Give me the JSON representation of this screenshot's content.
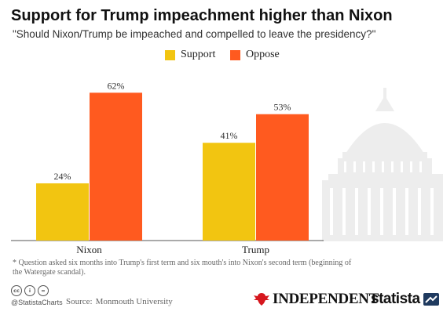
{
  "header": {
    "title": "Support for Trump impeachment higher than Nixon",
    "subtitle": "\"Should  Nixon/Trump be impeached and compelled to leave the presidency?\""
  },
  "chart_data": {
    "type": "bar",
    "categories": [
      "Nixon",
      "Trump"
    ],
    "series": [
      {
        "name": "Support",
        "values": [
          24,
          41
        ],
        "color": "#F2C511"
      },
      {
        "name": "Oppose",
        "values": [
          62,
          53
        ],
        "color": "#FF5A1F"
      }
    ],
    "value_labels": [
      [
        "24%",
        "41%"
      ],
      [
        "62%",
        "53%"
      ]
    ],
    "ylim": [
      0,
      70
    ],
    "grid": false,
    "legend": "top",
    "title": "Support for Trump impeachment higher than Nixon",
    "xlabel": "",
    "ylabel": ""
  },
  "legend": {
    "support_label": "Support",
    "oppose_label": "Oppose"
  },
  "footnote": "* Question asked six months into Trump's first term and six mouth's into Nixon's second term (beginning of the Watergate scandal).",
  "footer": {
    "handle": "@StatistaCharts",
    "source_label": "Source:",
    "source_value": "Monmouth University",
    "cc_icons": [
      "cc",
      "i",
      "="
    ],
    "logo_independent": "INDEPENDENT",
    "logo_statista": "statista"
  },
  "colors": {
    "support": "#F2C511",
    "oppose": "#FF5A1F",
    "capitol_watermark": "#EDEDED",
    "axis": "#555555"
  }
}
